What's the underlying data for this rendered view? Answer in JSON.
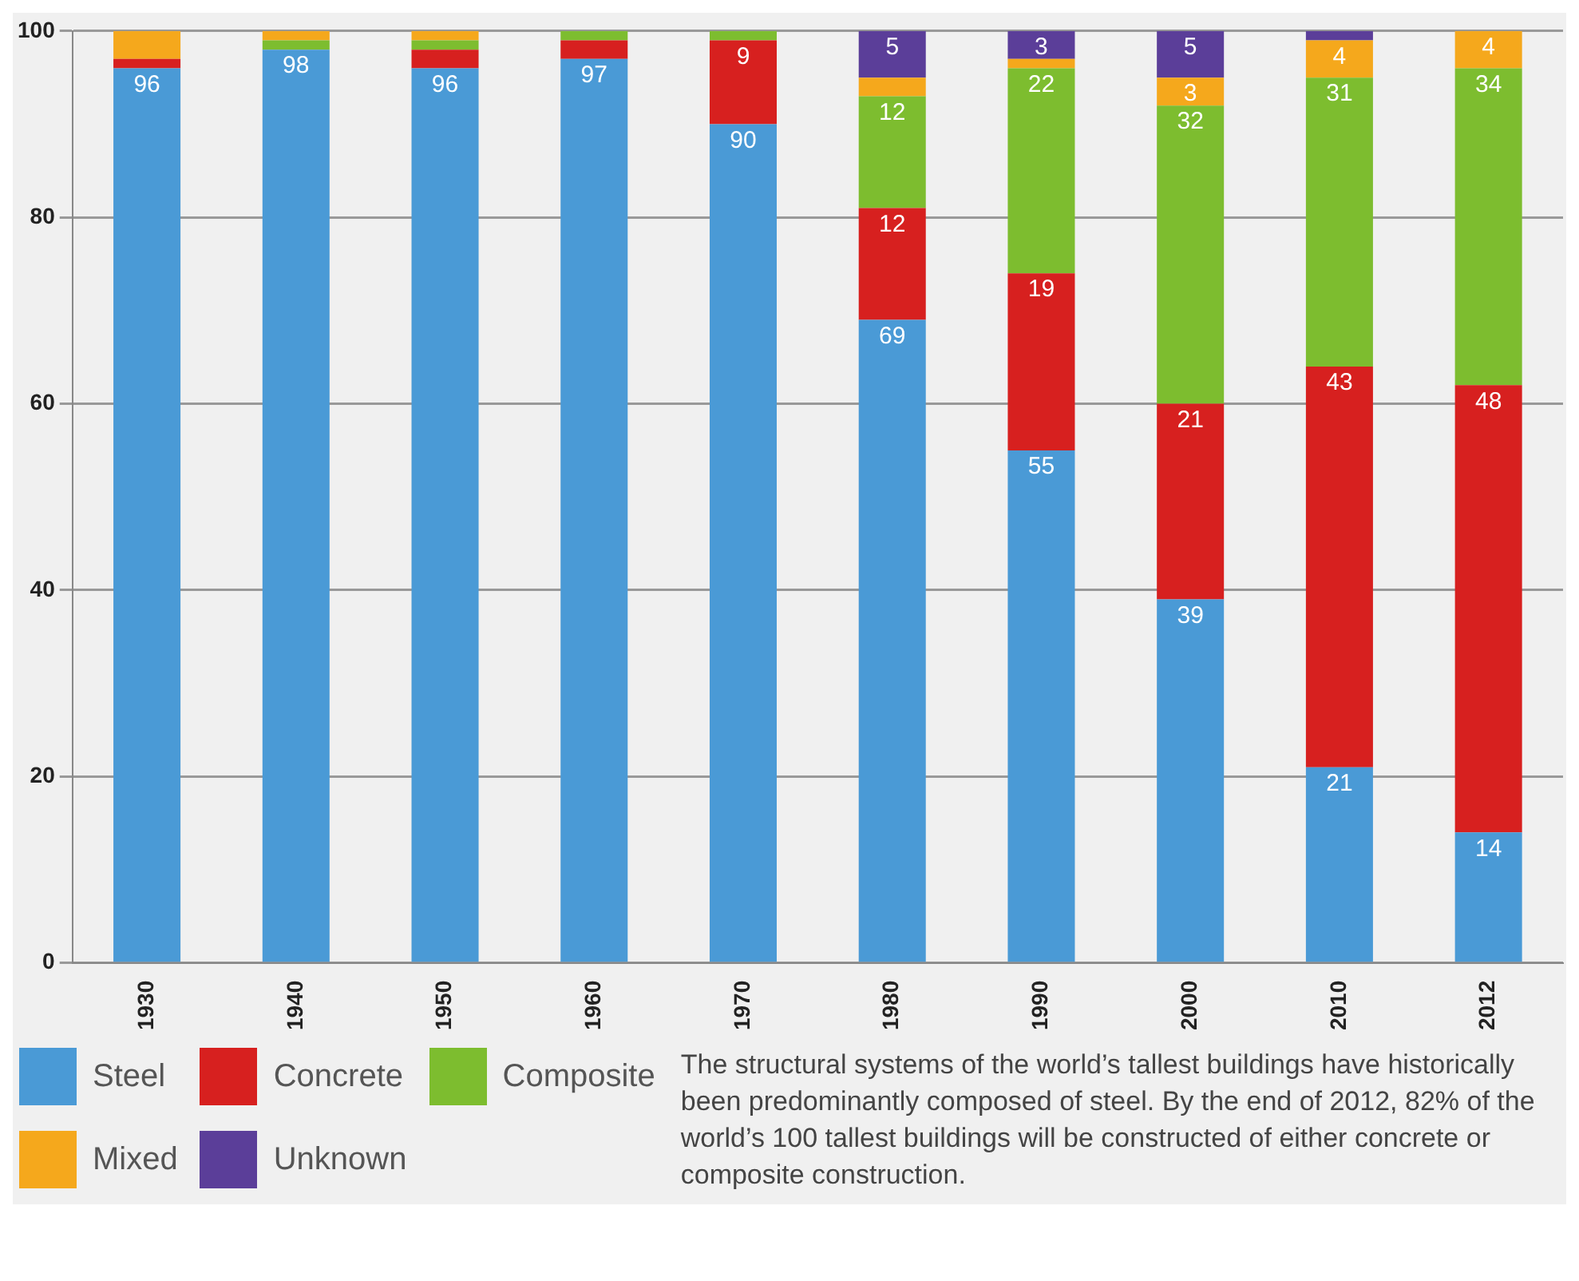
{
  "chart_data": {
    "type": "bar",
    "stacked": true,
    "categories": [
      "1930",
      "1940",
      "1950",
      "1960",
      "1970",
      "1980",
      "1990",
      "2000",
      "2010",
      "2012"
    ],
    "series": [
      {
        "name": "Steel",
        "color": "#4a9ad6",
        "values": [
          96,
          98,
          96,
          97,
          90,
          69,
          55,
          39,
          21,
          14
        ],
        "value_labels": [
          "96",
          "98",
          "96",
          "97",
          "90",
          "69",
          "55",
          "39",
          "21",
          "14"
        ]
      },
      {
        "name": "Concrete",
        "color": "#d7201f",
        "values": [
          1,
          0,
          2,
          2,
          9,
          12,
          19,
          21,
          43,
          48
        ],
        "value_labels": [
          null,
          null,
          null,
          null,
          "9",
          "12",
          "19",
          "21",
          "43",
          "48"
        ]
      },
      {
        "name": "Composite",
        "color": "#7dbd2f",
        "values": [
          0,
          1,
          1,
          1,
          1,
          12,
          22,
          32,
          31,
          34
        ],
        "value_labels": [
          null,
          null,
          null,
          null,
          null,
          "12",
          "22",
          "32",
          "31",
          "34"
        ]
      },
      {
        "name": "Mixed",
        "color": "#f5a81c",
        "values": [
          3,
          1,
          1,
          0,
          0,
          2,
          1,
          3,
          4,
          4
        ],
        "value_labels": [
          null,
          null,
          null,
          null,
          null,
          null,
          null,
          "3",
          "4",
          "4"
        ]
      },
      {
        "name": "Unknown",
        "color": "#5b3e99",
        "values": [
          0,
          0,
          0,
          0,
          0,
          5,
          3,
          5,
          1,
          0
        ],
        "value_labels": [
          null,
          null,
          null,
          null,
          null,
          "5",
          "3",
          "5",
          null,
          null
        ]
      }
    ],
    "ylim": [
      0,
      100
    ],
    "yticks": [
      0,
      20,
      40,
      60,
      80,
      100
    ],
    "grid": "y",
    "legend": "bottom left",
    "annotations": [
      "The structural systems of the world’s tallest buildings have historically been predominantly composed of steel. By the end of 2012, 82% of the world’s 100 tallest buildings will be constructed of either concrete or composite construction."
    ]
  }
}
